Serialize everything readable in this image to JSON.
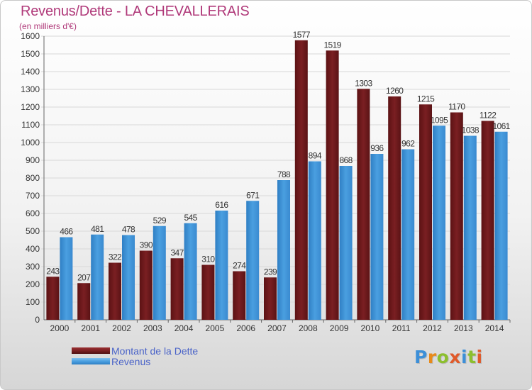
{
  "title": "Revenus/Dette - LA CHEVALLERAIS",
  "subtitle": "(en milliers d'€)",
  "colors": {
    "title": "#b03a7a",
    "dette": "#7a1f22",
    "revenus": "#4a9fe0",
    "legend_text": "#4a63c8"
  },
  "legend": {
    "dette": "Montant de la Dette",
    "revenus": "Revenus"
  },
  "logo": {
    "letters": [
      "P",
      "r",
      "o",
      "x",
      "i",
      "t",
      "i"
    ],
    "colors": [
      "#3c8fd8",
      "#e88a1a",
      "#8cbf2e",
      "#e05a2a",
      "#3c8fd8",
      "#8cbf2e",
      "#e05a2a"
    ]
  },
  "chart_data": {
    "type": "bar",
    "categories": [
      "2000",
      "2001",
      "2002",
      "2003",
      "2004",
      "2005",
      "2006",
      "2007",
      "2008",
      "2009",
      "2010",
      "2011",
      "2012",
      "2013",
      "2014"
    ],
    "series": [
      {
        "name": "Montant de la Dette",
        "values": [
          243,
          207,
          322,
          390,
          347,
          310,
          274,
          239,
          1577,
          1519,
          1303,
          1260,
          1215,
          1170,
          1122
        ]
      },
      {
        "name": "Revenus",
        "values": [
          466,
          481,
          478,
          529,
          545,
          616,
          671,
          788,
          894,
          868,
          936,
          962,
          1095,
          1038,
          1061
        ]
      }
    ],
    "ylim": [
      0,
      1600
    ],
    "yticks": [
      0,
      100,
      200,
      300,
      400,
      500,
      600,
      700,
      800,
      900,
      1000,
      1100,
      1200,
      1300,
      1400,
      1500,
      1600
    ],
    "grid": true,
    "legend_position": "bottom-left"
  }
}
